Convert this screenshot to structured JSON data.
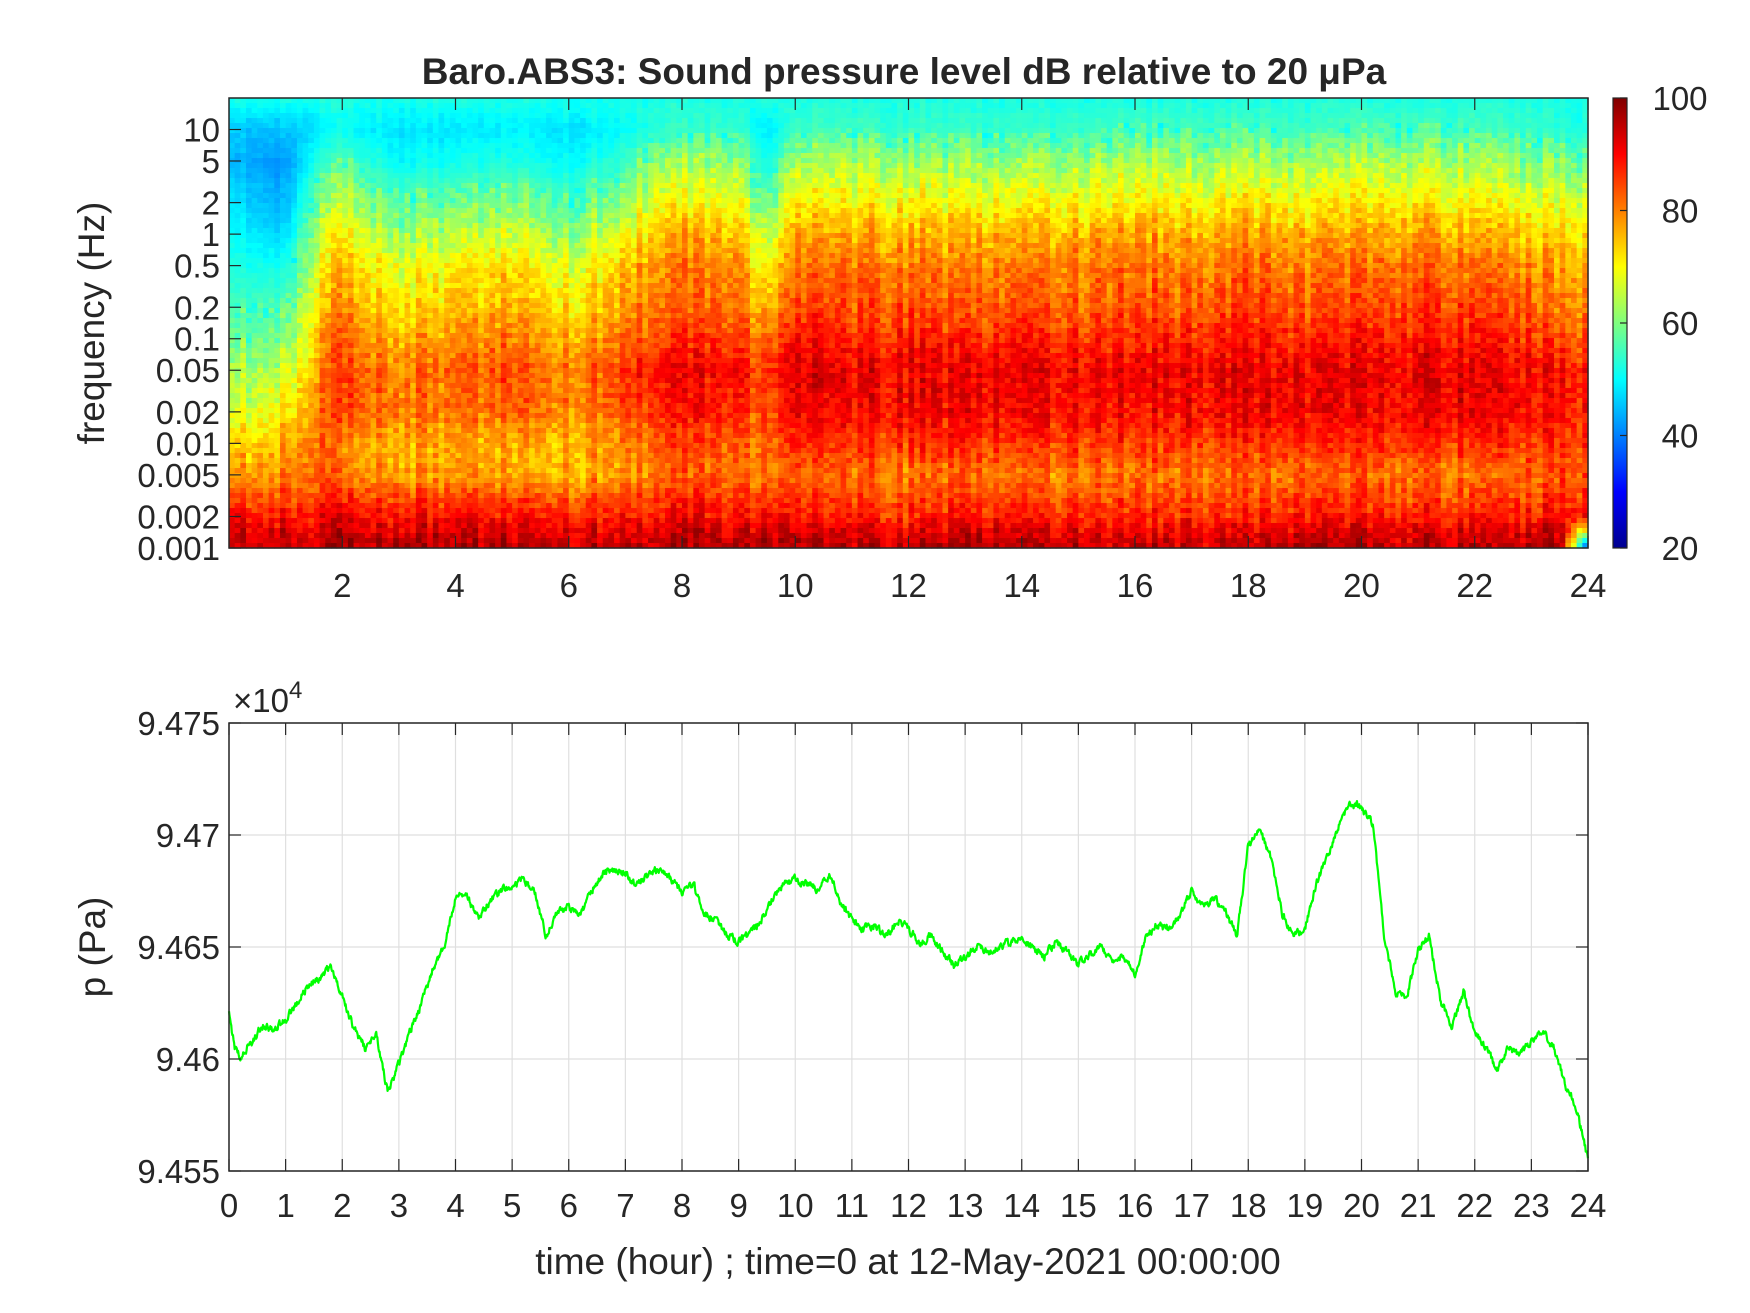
{
  "figure": {
    "title": "Baro.ABS3: Sound pressure level dB relative to 20 μPa"
  },
  "chart_data": [
    {
      "type": "heatmap",
      "title": "Baro.ABS3: Sound pressure level dB relative to 20 μPa",
      "xlabel": "",
      "ylabel": "frequency (Hz)",
      "x_unit": "hour",
      "xlim": [
        0,
        24
      ],
      "xticks": [
        2,
        4,
        6,
        8,
        10,
        12,
        14,
        16,
        18,
        20,
        22,
        24
      ],
      "y_scale": "log",
      "ylim": [
        0.001,
        20
      ],
      "yticks": [
        0.001,
        0.002,
        0.005,
        0.01,
        0.02,
        0.05,
        0.1,
        0.2,
        0.5,
        1,
        2,
        5,
        10
      ],
      "ytick_labels": [
        "0.001",
        "0.002",
        "0.005",
        "0.01",
        "0.02",
        "0.05",
        "0.1",
        "0.2",
        "0.5",
        "1",
        "2",
        "5",
        "10"
      ],
      "colormap": "jet",
      "clim": [
        20,
        100
      ],
      "colorbar_ticks": [
        20,
        40,
        60,
        80,
        100
      ],
      "time_hours": [
        0,
        1,
        1.5,
        2,
        3,
        4,
        5,
        6,
        7,
        7.5,
        8,
        9,
        9.5,
        10,
        11,
        12,
        13,
        14,
        15,
        16,
        17,
        18,
        19,
        20,
        21,
        22,
        23,
        23.5,
        24
      ],
      "freq_hz": [
        0.001,
        0.0015,
        0.002,
        0.003,
        0.005,
        0.01,
        0.02,
        0.05,
        0.1,
        0.2,
        0.5,
        1,
        2,
        5,
        10,
        20
      ],
      "db_levels": [
        [
          95,
          93,
          90,
          84,
          78,
          72,
          66,
          62,
          58,
          55,
          52,
          50,
          48,
          44,
          46,
          52
        ],
        [
          94,
          92,
          89,
          84,
          80,
          76,
          71,
          66,
          60,
          56,
          51,
          47,
          44,
          42,
          45,
          52
        ],
        [
          94,
          92,
          90,
          86,
          84,
          82,
          80,
          77,
          74,
          71,
          67,
          63,
          58,
          52,
          48,
          52
        ],
        [
          96,
          93,
          90,
          86,
          80,
          78,
          84,
          84,
          82,
          78,
          74,
          70,
          64,
          56,
          50,
          52
        ],
        [
          96,
          92,
          89,
          85,
          78,
          76,
          81,
          80,
          76,
          72,
          68,
          62,
          57,
          50,
          48,
          52
        ],
        [
          96,
          93,
          89,
          85,
          77,
          76,
          80,
          82,
          78,
          74,
          70,
          64,
          58,
          51,
          48,
          52
        ],
        [
          95,
          92,
          88,
          84,
          76,
          76,
          82,
          84,
          80,
          76,
          72,
          66,
          60,
          52,
          49,
          52
        ],
        [
          95,
          92,
          88,
          84,
          77,
          76,
          80,
          80,
          76,
          72,
          68,
          62,
          56,
          50,
          48,
          52
        ],
        [
          95,
          92,
          88,
          85,
          78,
          80,
          84,
          86,
          82,
          78,
          74,
          68,
          62,
          54,
          50,
          52
        ],
        [
          94,
          92,
          88,
          85,
          80,
          82,
          86,
          88,
          84,
          80,
          78,
          74,
          68,
          60,
          53,
          52
        ],
        [
          96,
          93,
          89,
          86,
          82,
          84,
          88,
          90,
          86,
          82,
          80,
          76,
          70,
          62,
          54,
          52
        ],
        [
          96,
          93,
          89,
          86,
          82,
          84,
          88,
          90,
          86,
          82,
          80,
          76,
          70,
          62,
          54,
          52
        ],
        [
          95,
          92,
          88,
          84,
          80,
          80,
          82,
          84,
          80,
          74,
          68,
          62,
          56,
          50,
          48,
          52
        ],
        [
          95,
          92,
          88,
          85,
          82,
          86,
          90,
          92,
          88,
          84,
          80,
          76,
          70,
          62,
          54,
          52
        ],
        [
          95,
          92,
          88,
          85,
          82,
          86,
          90,
          91,
          87,
          84,
          81,
          77,
          71,
          63,
          55,
          52
        ],
        [
          94,
          91,
          87,
          84,
          80,
          86,
          90,
          91,
          88,
          84,
          80,
          76,
          70,
          62,
          54,
          52
        ],
        [
          95,
          92,
          88,
          85,
          82,
          86,
          90,
          90,
          86,
          82,
          79,
          75,
          69,
          61,
          54,
          52
        ],
        [
          95,
          92,
          88,
          85,
          80,
          86,
          90,
          91,
          88,
          84,
          80,
          76,
          70,
          62,
          54,
          52
        ],
        [
          94,
          91,
          87,
          84,
          80,
          86,
          89,
          90,
          86,
          82,
          80,
          76,
          70,
          62,
          54,
          52
        ],
        [
          95,
          92,
          88,
          85,
          82,
          86,
          90,
          92,
          88,
          85,
          82,
          78,
          72,
          64,
          56,
          52
        ],
        [
          94,
          91,
          87,
          84,
          81,
          86,
          90,
          91,
          87,
          83,
          80,
          76,
          70,
          62,
          55,
          52
        ],
        [
          95,
          92,
          88,
          85,
          82,
          87,
          91,
          92,
          89,
          86,
          82,
          78,
          72,
          64,
          56,
          52
        ],
        [
          94,
          91,
          87,
          84,
          80,
          85,
          89,
          90,
          86,
          82,
          79,
          75,
          69,
          61,
          54,
          52
        ],
        [
          95,
          92,
          88,
          85,
          82,
          86,
          90,
          91,
          88,
          84,
          81,
          77,
          71,
          63,
          56,
          52
        ],
        [
          95,
          92,
          88,
          85,
          82,
          87,
          91,
          92,
          89,
          86,
          82,
          78,
          72,
          64,
          56,
          52
        ],
        [
          94,
          91,
          87,
          84,
          80,
          86,
          90,
          91,
          88,
          84,
          80,
          76,
          70,
          62,
          55,
          52
        ],
        [
          95,
          92,
          88,
          85,
          82,
          86,
          90,
          90,
          86,
          82,
          79,
          74,
          68,
          60,
          54,
          52
        ],
        [
          97,
          94,
          90,
          87,
          84,
          86,
          89,
          89,
          85,
          81,
          78,
          74,
          68,
          60,
          53,
          52
        ],
        [
          30,
          70,
          88,
          86,
          84,
          86,
          88,
          88,
          84,
          80,
          76,
          72,
          66,
          58,
          52,
          52
        ]
      ]
    },
    {
      "type": "line",
      "xlabel": "time (hour) ; time=0 at 12-May-2021 00:00:00",
      "ylabel": "p (Pa)",
      "xlim": [
        0,
        24
      ],
      "xticks": [
        0,
        1,
        2,
        3,
        4,
        5,
        6,
        7,
        8,
        9,
        10,
        11,
        12,
        13,
        14,
        15,
        16,
        17,
        18,
        19,
        20,
        21,
        22,
        23,
        24
      ],
      "ylim": [
        9.455,
        9.475
      ],
      "yticks": [
        9.455,
        9.46,
        9.465,
        9.47,
        9.475
      ],
      "ytick_labels": [
        "9.455",
        "9.46",
        "9.465",
        "9.47",
        "9.475"
      ],
      "y_multiplier_base": "×10",
      "y_multiplier_exponent": "4",
      "grid": true,
      "series": [
        {
          "color": "#00ff00",
          "x": [
            0,
            0.1,
            0.2,
            0.4,
            0.6,
            0.8,
            1.0,
            1.2,
            1.4,
            1.6,
            1.8,
            2.0,
            2.2,
            2.4,
            2.6,
            2.8,
            3.0,
            3.2,
            3.4,
            3.6,
            3.8,
            4.0,
            4.2,
            4.4,
            4.6,
            4.8,
            5.0,
            5.2,
            5.4,
            5.6,
            5.8,
            6.0,
            6.2,
            6.4,
            6.6,
            6.8,
            7.0,
            7.2,
            7.4,
            7.6,
            7.8,
            8.0,
            8.2,
            8.4,
            8.6,
            8.8,
            9.0,
            9.2,
            9.4,
            9.6,
            9.8,
            10.0,
            10.2,
            10.4,
            10.6,
            10.8,
            11.0,
            11.2,
            11.4,
            11.6,
            11.8,
            12.0,
            12.2,
            12.4,
            12.6,
            12.8,
            13.0,
            13.2,
            13.4,
            13.6,
            13.8,
            14.0,
            14.2,
            14.4,
            14.6,
            14.8,
            15.0,
            15.2,
            15.4,
            15.6,
            15.8,
            16.0,
            16.2,
            16.4,
            16.6,
            16.8,
            17.0,
            17.2,
            17.4,
            17.6,
            17.8,
            18.0,
            18.2,
            18.4,
            18.6,
            18.8,
            19.0,
            19.2,
            19.4,
            19.6,
            19.8,
            20.0,
            20.2,
            20.4,
            20.6,
            20.8,
            21.0,
            21.2,
            21.4,
            21.6,
            21.8,
            22.0,
            22.2,
            22.4,
            22.6,
            22.8,
            23.0,
            23.2,
            23.4,
            23.6,
            23.8,
            24.0
          ],
          "y": [
            9.462,
            9.4605,
            9.4601,
            9.4608,
            9.4615,
            9.4613,
            9.4618,
            9.4625,
            9.4633,
            9.4636,
            9.4641,
            9.4628,
            9.4614,
            9.4605,
            9.4612,
            9.4585,
            9.4598,
            9.4612,
            9.4625,
            9.464,
            9.465,
            9.4672,
            9.4673,
            9.4662,
            9.467,
            9.4675,
            9.4678,
            9.468,
            9.4675,
            9.4655,
            9.4665,
            9.4668,
            9.4664,
            9.4675,
            9.4682,
            9.4685,
            9.4683,
            9.4678,
            9.4682,
            9.4685,
            9.468,
            9.4675,
            9.4678,
            9.4665,
            9.4662,
            9.4655,
            9.4652,
            9.4656,
            9.4662,
            9.4672,
            9.4678,
            9.468,
            9.4678,
            9.4676,
            9.4682,
            9.467,
            9.4662,
            9.4658,
            9.466,
            9.4655,
            9.4662,
            9.4658,
            9.4652,
            9.4655,
            9.4648,
            9.4642,
            9.4645,
            9.465,
            9.4648,
            9.465,
            9.4652,
            9.4654,
            9.465,
            9.4646,
            9.4652,
            9.4648,
            9.4642,
            9.4646,
            9.465,
            9.4644,
            9.4646,
            9.4638,
            9.4655,
            9.466,
            9.4658,
            9.4665,
            9.4675,
            9.4668,
            9.4672,
            9.4665,
            9.4655,
            9.4695,
            9.4702,
            9.469,
            9.4665,
            9.4655,
            9.4658,
            9.4678,
            9.469,
            9.4705,
            9.4715,
            9.4712,
            9.4705,
            9.4655,
            9.463,
            9.4628,
            9.4648,
            9.4655,
            9.4625,
            9.4615,
            9.463,
            9.4612,
            9.4605,
            9.4595,
            9.4605,
            9.4602,
            9.4608,
            9.4612,
            9.4605,
            9.4588,
            9.4578,
            9.4555
          ]
        }
      ]
    }
  ]
}
